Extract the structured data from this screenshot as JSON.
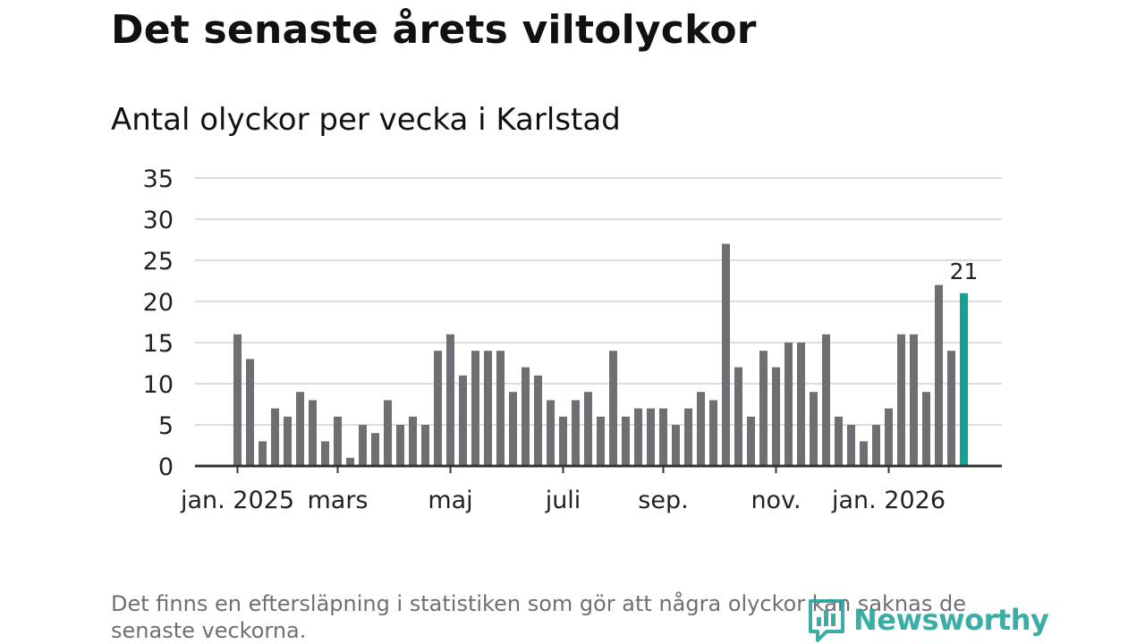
{
  "title": "Det senaste årets viltolyckor",
  "subtitle": "Antal olyckor per vecka i Karlstad",
  "footnote": "Det finns en eftersläpning i statistiken som gör att några olyckor kan saknas de senaste veckorna.",
  "brand": "Newsworthy",
  "colors": {
    "bar": "#6f6e73",
    "highlight": "#13a197",
    "grid": "#dcdcdc",
    "axis": "#333333",
    "brand": "#1fa39a"
  },
  "chart_data": {
    "type": "bar",
    "title": "Antal olyckor per vecka i Karlstad",
    "xlabel": "",
    "ylabel": "",
    "ylim": [
      0,
      35
    ],
    "yticks": [
      0,
      5,
      10,
      15,
      20,
      25,
      30,
      35
    ],
    "grid": true,
    "values": [
      16,
      13,
      3,
      7,
      6,
      9,
      8,
      3,
      6,
      1,
      5,
      4,
      8,
      5,
      6,
      5,
      14,
      16,
      11,
      14,
      14,
      14,
      9,
      12,
      11,
      8,
      6,
      8,
      9,
      6,
      14,
      6,
      7,
      7,
      7,
      5,
      7,
      9,
      8,
      27,
      12,
      6,
      14,
      12,
      15,
      15,
      9,
      16,
      6,
      5,
      3,
      5,
      7,
      16,
      16,
      9,
      22,
      14,
      21
    ],
    "highlight_index": 58,
    "highlight_label": "21",
    "x_ticks": [
      {
        "label": "jan. 2025",
        "index": 0
      },
      {
        "label": "mars",
        "index": 8
      },
      {
        "label": "maj",
        "index": 17
      },
      {
        "label": "juli",
        "index": 26
      },
      {
        "label": "sep.",
        "index": 34
      },
      {
        "label": "nov.",
        "index": 43
      },
      {
        "label": "jan. 2026",
        "index": 52
      }
    ]
  }
}
